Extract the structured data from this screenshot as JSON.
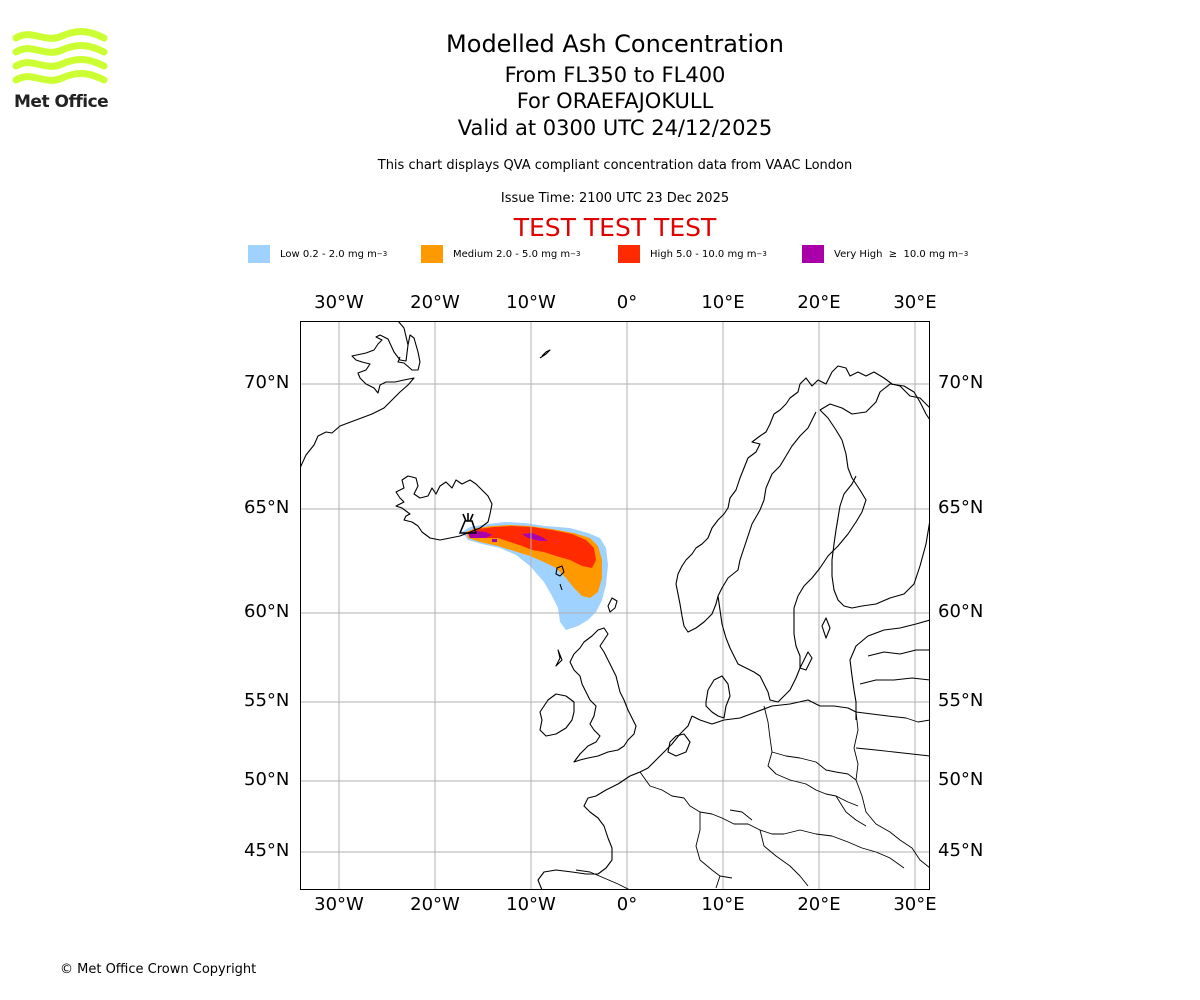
{
  "logo": {
    "text": "Met Office",
    "color": "#ccff33"
  },
  "header": {
    "title": "Modelled Ash Concentration",
    "levels": "From FL350 to FL400",
    "volcano": "For ORAEFAJOKULL",
    "valid": "Valid at 0300 UTC 24/12/2025",
    "note": "This chart displays QVA compliant concentration data from VAAC London",
    "issue_time": "Issue Time: 2100 UTC 23 Dec 2025",
    "test_banner": "TEST TEST TEST"
  },
  "legend": [
    {
      "label": "Low 0.2 - 2.0 mg m",
      "unit_sup": "−3",
      "color": "#a0d2ff"
    },
    {
      "label": "Medium 2.0 - 5.0 mg m",
      "unit_sup": "−3",
      "color": "#ff9900"
    },
    {
      "label": "High 5.0 - 10.0 mg m",
      "unit_sup": "−3",
      "color": "#ff2a00"
    },
    {
      "label": "Very High  ≥  10.0 mg m",
      "unit_sup": "−3",
      "color": "#aa00aa"
    }
  ],
  "map": {
    "lon_labels": [
      "30°W",
      "20°W",
      "10°W",
      "0°",
      "10°E",
      "20°E",
      "30°E"
    ],
    "lat_labels": [
      "70°N",
      "65°N",
      "60°N",
      "55°N",
      "50°N",
      "45°N"
    ],
    "volcano_symbol": "volcano-icon"
  },
  "footer": {
    "copyright": "© Met Office Crown Copyright"
  }
}
